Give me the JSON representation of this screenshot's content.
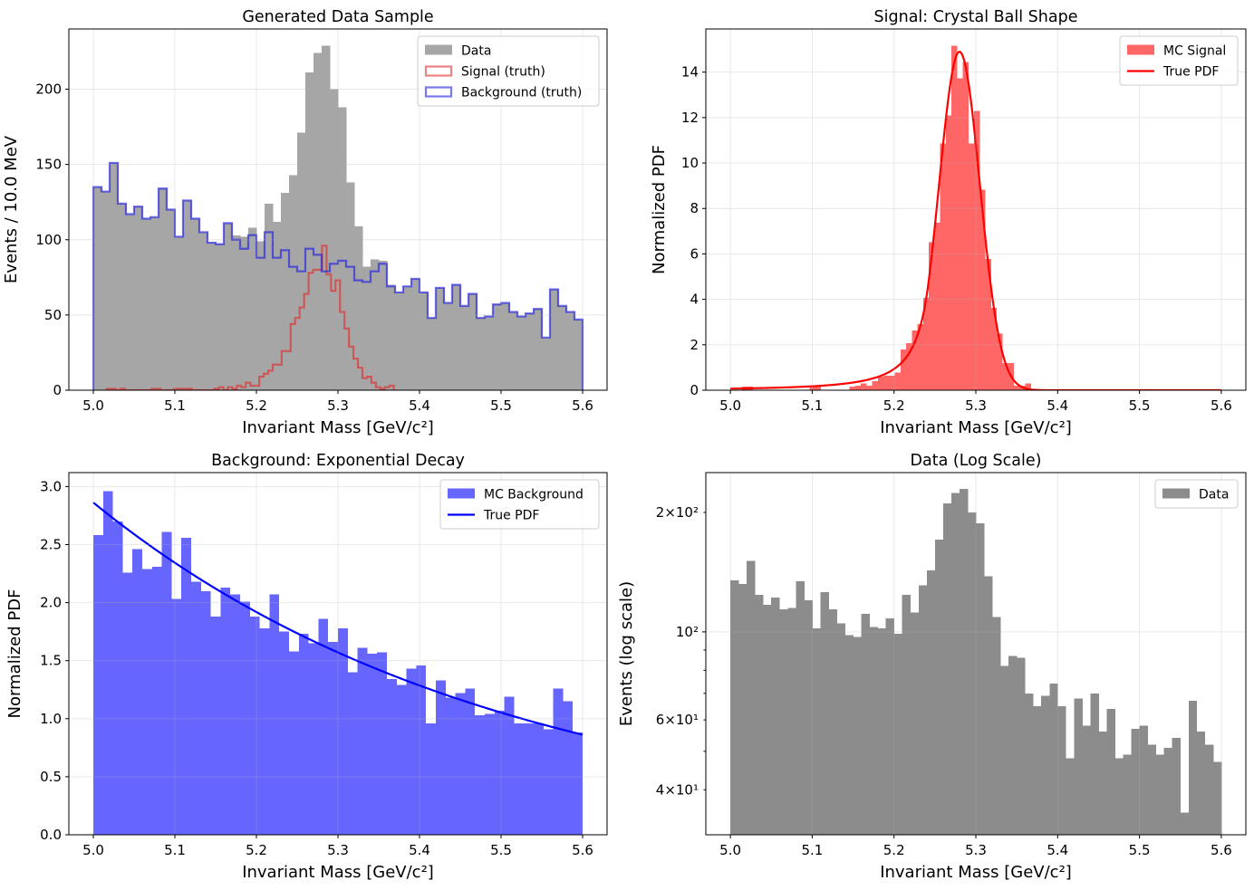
{
  "chart_data": [
    {
      "type": "histogram",
      "title": "Generated Data Sample",
      "xlabel": "Invariant Mass [GeV/c²]",
      "ylabel": "Events / 10.0 MeV",
      "xlim": [
        4.97,
        5.63
      ],
      "ylim": [
        0,
        240
      ],
      "yscale": "linear",
      "grid": true,
      "legend": "upper-right",
      "x_ticks": [
        {
          "value": 5.0,
          "label": "5.0"
        },
        {
          "value": 5.1,
          "label": "5.1"
        },
        {
          "value": 5.2,
          "label": "5.2"
        },
        {
          "value": 5.3,
          "label": "5.3"
        },
        {
          "value": 5.4,
          "label": "5.4"
        },
        {
          "value": 5.5,
          "label": "5.5"
        },
        {
          "value": 5.6,
          "label": "5.6"
        }
      ],
      "y_ticks": [
        {
          "value": 0,
          "label": "0"
        },
        {
          "value": 50,
          "label": "50"
        },
        {
          "value": 100,
          "label": "100"
        },
        {
          "value": 150,
          "label": "150"
        },
        {
          "value": 200,
          "label": "200"
        }
      ],
      "series": [
        {
          "name": "Data",
          "kind": "filled",
          "legend": "patch",
          "color": "#a6a6a6",
          "bin_start": 5.0,
          "bin_width": 0.01,
          "values": [
            135,
            132,
            151,
            124,
            117,
            122,
            114,
            115,
            134,
            120,
            102,
            126,
            114,
            105,
            98,
            97,
            111,
            103,
            102,
            108,
            99,
            124,
            112,
            131,
            143,
            171,
            211,
            224,
            229,
            200,
            188,
            138,
            109,
            82,
            87,
            86,
            70,
            65,
            69,
            74,
            65,
            48,
            68,
            58,
            70,
            56,
            64,
            48,
            49,
            57,
            58,
            52,
            49,
            51,
            54,
            35,
            67,
            56,
            52,
            47
          ]
        },
        {
          "name": "Signal (truth)",
          "kind": "step",
          "legend": "outline",
          "color": "#e03030",
          "bin_start": 5.0,
          "bin_width": 0.0055,
          "values": [
            0,
            0,
            0,
            1,
            1,
            0,
            1,
            0,
            0,
            0,
            0,
            0,
            0,
            1,
            1,
            0,
            0,
            0,
            1,
            1,
            1,
            1,
            0,
            0,
            0,
            0,
            0,
            1,
            2,
            0,
            2,
            1,
            3,
            2,
            5,
            3,
            3,
            9,
            11,
            13,
            17,
            17,
            26,
            26,
            44,
            48,
            55,
            64,
            78,
            80,
            80,
            96,
            77,
            66,
            73,
            52,
            41,
            29,
            21,
            15,
            8,
            9,
            5,
            2,
            1,
            2,
            3
          ]
        },
        {
          "name": "Background (truth)",
          "kind": "step",
          "legend": "outline",
          "color": "#2020e0",
          "bin_start": 5.0,
          "bin_width": 0.01,
          "values": [
            135,
            132,
            151,
            124,
            117,
            122,
            114,
            115,
            134,
            120,
            102,
            126,
            114,
            105,
            98,
            97,
            111,
            100,
            94,
            103,
            88,
            105,
            88,
            93,
            82,
            79,
            94,
            90,
            79,
            84,
            86,
            82,
            73,
            72,
            79,
            84,
            69,
            65,
            69,
            74,
            65,
            48,
            68,
            58,
            70,
            56,
            64,
            48,
            49,
            57,
            58,
            52,
            49,
            51,
            54,
            35,
            67,
            56,
            52,
            47
          ]
        }
      ]
    },
    {
      "type": "histogram",
      "title": "Signal: Crystal Ball Shape",
      "xlabel": "Invariant Mass [GeV/c²]",
      "ylabel": "Normalized PDF",
      "xlim": [
        4.97,
        5.63
      ],
      "ylim": [
        0,
        15.9
      ],
      "yscale": "linear",
      "grid": true,
      "legend": "upper-right",
      "x_ticks": [
        {
          "value": 5.0,
          "label": "5.0"
        },
        {
          "value": 5.1,
          "label": "5.1"
        },
        {
          "value": 5.2,
          "label": "5.2"
        },
        {
          "value": 5.3,
          "label": "5.3"
        },
        {
          "value": 5.4,
          "label": "5.4"
        },
        {
          "value": 5.5,
          "label": "5.5"
        },
        {
          "value": 5.6,
          "label": "5.6"
        }
      ],
      "y_ticks": [
        {
          "value": 0,
          "label": "0"
        },
        {
          "value": 2,
          "label": "2"
        },
        {
          "value": 4,
          "label": "4"
        },
        {
          "value": 6,
          "label": "6"
        },
        {
          "value": 8,
          "label": "8"
        },
        {
          "value": 10,
          "label": "10"
        },
        {
          "value": 12,
          "label": "12"
        },
        {
          "value": 14,
          "label": "14"
        }
      ],
      "series": [
        {
          "name": "MC Signal",
          "kind": "bars",
          "legend": "patch",
          "color": "#ff6666",
          "bin_start": 5.0,
          "bin_width": 0.00693,
          "values": [
            0,
            0,
            0.15,
            0.15,
            0,
            0,
            0,
            0,
            0,
            0,
            0,
            0,
            0,
            0,
            0.15,
            0.15,
            0,
            0,
            0,
            0,
            0,
            0.15,
            0.2,
            0.3,
            0.2,
            0.4,
            0.6,
            0.64,
            0.64,
            0.77,
            1.79,
            2.07,
            2.63,
            2.9,
            4.06,
            6.51,
            7.38,
            10.85,
            12.1,
            15.16,
            13.73,
            14.44,
            10.85,
            12.29,
            8.82,
            5.78,
            3.63,
            2.5,
            1.2,
            1.2,
            0.2,
            0.2,
            0.3
          ]
        },
        {
          "name": "True PDF",
          "kind": "curve",
          "legend": "line",
          "color": "#ff0000",
          "function": "crystal_ball",
          "mean": 5.28,
          "sigma": 0.025,
          "alpha": 1.5,
          "n": 2,
          "peak_value": 14.9,
          "x_range": [
            5.0,
            5.6
          ]
        }
      ]
    },
    {
      "type": "histogram",
      "title": "Background: Exponential Decay",
      "xlabel": "Invariant Mass [GeV/c²]",
      "ylabel": "Normalized PDF",
      "xlim": [
        4.97,
        5.63
      ],
      "ylim": [
        0,
        3.12
      ],
      "yscale": "linear",
      "grid": true,
      "legend": "upper-right",
      "x_ticks": [
        {
          "value": 5.0,
          "label": "5.0"
        },
        {
          "value": 5.1,
          "label": "5.1"
        },
        {
          "value": 5.2,
          "label": "5.2"
        },
        {
          "value": 5.3,
          "label": "5.3"
        },
        {
          "value": 5.4,
          "label": "5.4"
        },
        {
          "value": 5.5,
          "label": "5.5"
        },
        {
          "value": 5.6,
          "label": "5.6"
        }
      ],
      "y_ticks": [
        {
          "value": 0,
          "label": "0.0"
        },
        {
          "value": 0.5,
          "label": "0.5"
        },
        {
          "value": 1.0,
          "label": "1.0"
        },
        {
          "value": 1.5,
          "label": "1.5"
        },
        {
          "value": 2.0,
          "label": "2.0"
        },
        {
          "value": 2.5,
          "label": "2.5"
        },
        {
          "value": 3.0,
          "label": "3.0"
        }
      ],
      "series": [
        {
          "name": "MC Background",
          "kind": "bars",
          "legend": "patch",
          "color": "#6666ff",
          "bin_start": 5.0,
          "bin_width": 0.012,
          "values": [
            2.58,
            2.96,
            2.7,
            2.26,
            2.46,
            2.29,
            2.31,
            2.61,
            2.03,
            2.56,
            2.18,
            2.1,
            1.88,
            2.13,
            2.07,
            2.01,
            1.88,
            1.78,
            2.07,
            1.75,
            1.58,
            1.73,
            1.65,
            1.86,
            1.66,
            1.78,
            1.4,
            1.61,
            1.56,
            1.57,
            1.34,
            1.29,
            1.43,
            1.46,
            0.96,
            1.33,
            1.18,
            1.22,
            1.26,
            1.03,
            1.04,
            1.07,
            1.19,
            0.96,
            0.96,
            0.96,
            0.91,
            1.26,
            1.15,
            0.88
          ]
        },
        {
          "name": "True PDF",
          "kind": "curve",
          "legend": "line",
          "color": "#0000ff",
          "function": "exponential",
          "lambda": 2.0,
          "x_range": [
            5.0,
            5.6
          ]
        }
      ]
    },
    {
      "type": "histogram",
      "title": "Data (Log Scale)",
      "xlabel": "Invariant Mass [GeV/c²]",
      "ylabel": "Events (log scale)",
      "xlim": [
        4.97,
        5.63
      ],
      "ylim": [
        30.8,
        252
      ],
      "yscale": "log",
      "grid": true,
      "legend": "upper-right",
      "x_ticks": [
        {
          "value": 5.0,
          "label": "5.0"
        },
        {
          "value": 5.1,
          "label": "5.1"
        },
        {
          "value": 5.2,
          "label": "5.2"
        },
        {
          "value": 5.3,
          "label": "5.3"
        },
        {
          "value": 5.4,
          "label": "5.4"
        },
        {
          "value": 5.5,
          "label": "5.5"
        },
        {
          "value": 5.6,
          "label": "5.6"
        }
      ],
      "y_ticks": [
        {
          "value": 40,
          "label": "4×10¹"
        },
        {
          "value": 60,
          "label": "6×10¹"
        },
        {
          "value": 100,
          "label": "10²"
        },
        {
          "value": 200,
          "label": "2×10²"
        }
      ],
      "series": [
        {
          "name": "Data",
          "kind": "filled",
          "legend": "patch",
          "color": "#8c8c8c",
          "bin_start": 5.0,
          "bin_width": 0.01,
          "values": [
            135,
            132,
            151,
            124,
            117,
            122,
            114,
            115,
            134,
            120,
            102,
            126,
            114,
            105,
            98,
            97,
            111,
            103,
            102,
            108,
            99,
            124,
            112,
            131,
            143,
            171,
            211,
            224,
            229,
            200,
            188,
            138,
            109,
            82,
            87,
            86,
            70,
            65,
            69,
            74,
            65,
            48,
            68,
            58,
            70,
            56,
            64,
            48,
            49,
            57,
            58,
            52,
            49,
            51,
            54,
            35,
            67,
            56,
            52,
            47
          ]
        }
      ]
    }
  ]
}
